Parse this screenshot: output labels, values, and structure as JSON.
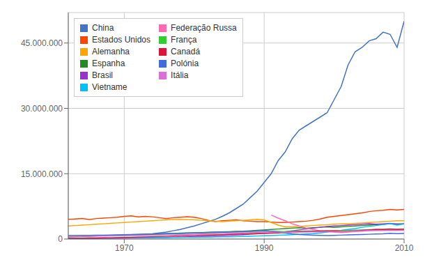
{
  "chart_data": {
    "type": "line",
    "x": [
      1962,
      1963,
      1964,
      1965,
      1966,
      1967,
      1968,
      1969,
      1970,
      1971,
      1972,
      1973,
      1974,
      1975,
      1976,
      1977,
      1978,
      1979,
      1980,
      1981,
      1982,
      1983,
      1984,
      1985,
      1986,
      1987,
      1988,
      1989,
      1990,
      1991,
      1992,
      1993,
      1994,
      1995,
      1996,
      1997,
      1998,
      1999,
      2000,
      2001,
      2002,
      2003,
      2004,
      2005,
      2006,
      2007,
      2008,
      2009,
      2010
    ],
    "series": [
      {
        "name": "China",
        "color": "#4472C4",
        "values": [
          500000,
          550000,
          600000,
          650000,
          700000,
          750000,
          800000,
          850000,
          900000,
          950000,
          1000000,
          1100000,
          1200000,
          1400000,
          1600000,
          1900000,
          2200000,
          2600000,
          3000000,
          3500000,
          4000000,
          4500000,
          5200000,
          6000000,
          7000000,
          8000000,
          9500000,
          11000000,
          13000000,
          15000000,
          18000000,
          20000000,
          23000000,
          25000000,
          26000000,
          27000000,
          28000000,
          29000000,
          32000000,
          35000000,
          40000000,
          43000000,
          44000000,
          45500000,
          46000000,
          47500000,
          47000000,
          44000000,
          50000000
        ]
      },
      {
        "name": "Estados Unidos",
        "color": "#FF4500",
        "values": [
          4500000,
          4600000,
          4700000,
          4500000,
          4700000,
          4800000,
          4900000,
          5000000,
          5200000,
          5300000,
          5100000,
          5200000,
          5100000,
          4900000,
          4700000,
          4900000,
          5000000,
          5100000,
          5000000,
          4700000,
          4300000,
          4000000,
          4200000,
          4300000,
          4400000,
          4200000,
          4100000,
          4000000,
          4000000,
          3900000,
          3800000,
          3800000,
          3900000,
          4000000,
          4100000,
          4300000,
          4600000,
          5000000,
          5200000,
          5400000,
          5600000,
          5800000,
          6000000,
          6300000,
          6500000,
          6600000,
          6800000,
          6700000,
          6800000
        ]
      },
      {
        "name": "Alemanha",
        "color": "#FFA500",
        "values": [
          3000000,
          3100000,
          3200000,
          3300000,
          3400000,
          3500000,
          3600000,
          3700000,
          3800000,
          3900000,
          4000000,
          4100000,
          4200000,
          4300000,
          4400000,
          4500000,
          4500000,
          4500000,
          4400000,
          4300000,
          4200000,
          4100000,
          4000000,
          4100000,
          4200000,
          4300000,
          4400000,
          4500000,
          4400000,
          3800000,
          3200000,
          2800000,
          2800000,
          2900000,
          3000000,
          3100000,
          3200000,
          3300000,
          3400000,
          3500000,
          3500000,
          3600000,
          3700000,
          3800000,
          3900000,
          4000000,
          4100000,
          4200000,
          4200000
        ]
      },
      {
        "name": "Espanha",
        "color": "#228B22",
        "values": [
          600000,
          620000,
          650000,
          700000,
          750000,
          800000,
          850000,
          900000,
          950000,
          1000000,
          1050000,
          1100000,
          1150000,
          1200000,
          1250000,
          1300000,
          1350000,
          1400000,
          1450000,
          1500000,
          1550000,
          1600000,
          1650000,
          1700000,
          1750000,
          1800000,
          1900000,
          2000000,
          2100000,
          2200000,
          2300000,
          2400000,
          2500000,
          2600000,
          2500000,
          2600000,
          2700000,
          2800000,
          2700000,
          2800000,
          2900000,
          3000000,
          3100000,
          3200000,
          3300000,
          3400000,
          3500000,
          3500000,
          3500000
        ]
      },
      {
        "name": "Brasil",
        "color": "#9932CC",
        "values": [
          100000,
          110000,
          120000,
          130000,
          140000,
          150000,
          160000,
          180000,
          200000,
          220000,
          250000,
          280000,
          310000,
          340000,
          380000,
          420000,
          460000,
          500000,
          550000,
          600000,
          650000,
          700000,
          760000,
          820000,
          900000,
          1000000,
          1100000,
          1200000,
          1300000,
          1400000,
          1500000,
          1700000,
          1900000,
          2100000,
          2300000,
          2500000,
          2700000,
          2900000,
          3000000,
          3100000,
          3200000,
          3300000,
          3400000,
          3500000,
          3400000,
          3500000,
          3600000,
          3400000,
          3500000
        ]
      },
      {
        "name": "Vietname",
        "color": "#00BFFF",
        "values": [
          200000,
          210000,
          220000,
          230000,
          240000,
          250000,
          260000,
          270000,
          280000,
          290000,
          300000,
          310000,
          320000,
          330000,
          340000,
          350000,
          360000,
          380000,
          400000,
          420000,
          440000,
          470000,
          500000,
          530000,
          560000,
          600000,
          650000,
          700000,
          760000,
          810000,
          870000,
          930000,
          1000000,
          1070000,
          1150000,
          1250000,
          1400000,
          1600000,
          1850000,
          2000000,
          2200000,
          2400000,
          2700000,
          2900000,
          3100000,
          3300000,
          3500000,
          3200000,
          3500000
        ]
      },
      {
        "name": "Federação Russa",
        "color": "#FF69B4",
        "values": [
          null,
          null,
          null,
          null,
          null,
          null,
          null,
          null,
          null,
          null,
          null,
          null,
          null,
          null,
          null,
          null,
          null,
          null,
          null,
          null,
          null,
          null,
          null,
          null,
          null,
          null,
          null,
          null,
          null,
          5500000,
          4800000,
          4200000,
          3500000,
          3000000,
          2500000,
          2200000,
          1900000,
          1700000,
          1600000,
          1500000,
          1600000,
          1700000,
          1800000,
          1900000,
          2000000,
          2100000,
          2200000,
          2200000,
          2300000
        ]
      },
      {
        "name": "França",
        "color": "#32CD32",
        "values": [
          700000,
          720000,
          740000,
          760000,
          780000,
          800000,
          830000,
          860000,
          900000,
          940000,
          980000,
          1020000,
          1060000,
          1100000,
          1150000,
          1200000,
          1250000,
          1300000,
          1350000,
          1400000,
          1440000,
          1480000,
          1520000,
          1560000,
          1600000,
          1650000,
          1700000,
          1750000,
          1800000,
          1800000,
          1750000,
          1700000,
          1750000,
          1800000,
          1800000,
          1800000,
          1850000,
          1900000,
          1900000,
          1950000,
          2000000,
          2050000,
          2100000,
          2150000,
          2200000,
          2200000,
          2200000,
          2200000,
          2100000
        ]
      },
      {
        "name": "Canadá",
        "color": "#DC143C",
        "values": [
          200000,
          210000,
          220000,
          230000,
          250000,
          270000,
          300000,
          330000,
          370000,
          410000,
          450000,
          500000,
          540000,
          580000,
          620000,
          670000,
          720000,
          770000,
          820000,
          870000,
          920000,
          970000,
          1020000,
          1080000,
          1130000,
          1180000,
          1240000,
          1280000,
          1300000,
          1350000,
          1400000,
          1500000,
          1600000,
          1700000,
          1750000,
          1800000,
          1850000,
          1900000,
          1900000,
          1800000,
          1800000,
          1900000,
          2000000,
          2100000,
          2200000,
          2200000,
          2300000,
          2200000,
          2300000
        ]
      },
      {
        "name": "Polónia",
        "color": "#4169E1",
        "values": [
          800000,
          820000,
          840000,
          860000,
          880000,
          900000,
          930000,
          960000,
          1000000,
          1040000,
          1080000,
          1120000,
          1160000,
          1200000,
          1240000,
          1280000,
          1320000,
          1360000,
          1400000,
          1450000,
          1500000,
          1550000,
          1600000,
          1650000,
          1700000,
          1750000,
          1800000,
          1900000,
          2000000,
          1800000,
          1600000,
          1400000,
          1200000,
          1050000,
          950000,
          880000,
          840000,
          800000,
          850000,
          900000,
          950000,
          1000000,
          1050000,
          1100000,
          1150000,
          1200000,
          1300000,
          1250000,
          1300000
        ]
      },
      {
        "name": "Itália",
        "color": "#DA70D6",
        "values": [
          600000,
          620000,
          640000,
          660000,
          680000,
          700000,
          720000,
          740000,
          760000,
          780000,
          800000,
          830000,
          860000,
          900000,
          940000,
          980000,
          1020000,
          1060000,
          1100000,
          1150000,
          1200000,
          1250000,
          1300000,
          1350000,
          1400000,
          1450000,
          1500000,
          1550000,
          1600000,
          1600000,
          1580000,
          1550000,
          1560000,
          1580000,
          1600000,
          1620000,
          1650000,
          1700000,
          1700000,
          1750000,
          1800000,
          1850000,
          1900000,
          1950000,
          1950000,
          1950000,
          2000000,
          1950000,
          2000000
        ]
      }
    ],
    "xlim": [
      1962,
      2010
    ],
    "xticks": [
      1970,
      1990,
      2010
    ],
    "ylim": [
      0,
      52000000
    ],
    "yticks": [
      0,
      {
        "value": 15000000,
        "label": "15.000.000"
      },
      {
        "value": 30000000,
        "label": "30.000.000"
      },
      {
        "value": 45000000,
        "label": "45.000.000"
      }
    ],
    "grid": true,
    "legend": "upper left"
  }
}
